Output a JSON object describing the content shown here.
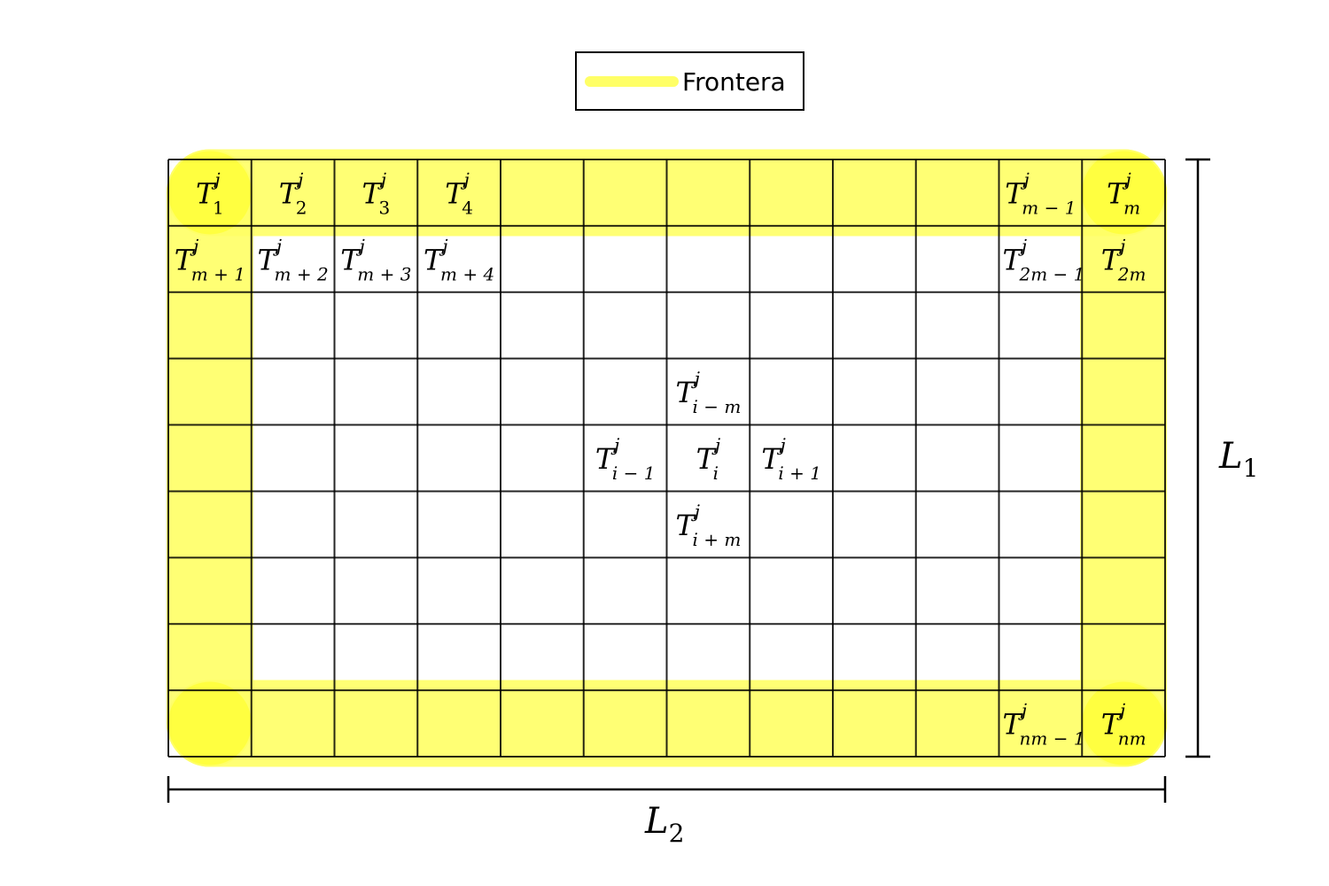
{
  "legend": {
    "label": "Frontera",
    "color": "#ffff66"
  },
  "grid": {
    "cols": 12,
    "rows": 9
  },
  "dimensions": {
    "height": {
      "base": "L",
      "sub": "1"
    },
    "width": {
      "base": "L",
      "sub": "2"
    }
  },
  "cell_labels": [
    {
      "row": 0,
      "col": 0,
      "sub": "1"
    },
    {
      "row": 0,
      "col": 1,
      "sub": "2"
    },
    {
      "row": 0,
      "col": 2,
      "sub": "3"
    },
    {
      "row": 0,
      "col": 3,
      "sub": "4"
    },
    {
      "row": 0,
      "col": 10,
      "sub": "m − 1"
    },
    {
      "row": 0,
      "col": 11,
      "sub": "m"
    },
    {
      "row": 1,
      "col": 0,
      "sub": "m + 1"
    },
    {
      "row": 1,
      "col": 1,
      "sub": "m + 2"
    },
    {
      "row": 1,
      "col": 2,
      "sub": "m + 3"
    },
    {
      "row": 1,
      "col": 3,
      "sub": "m + 4"
    },
    {
      "row": 1,
      "col": 10,
      "sub": "2m − 1"
    },
    {
      "row": 1,
      "col": 11,
      "sub": "2m"
    },
    {
      "row": 3,
      "col": 6,
      "sub": "i − m"
    },
    {
      "row": 4,
      "col": 5,
      "sub": "i − 1"
    },
    {
      "row": 4,
      "col": 6,
      "sub": "i"
    },
    {
      "row": 4,
      "col": 7,
      "sub": "i + 1"
    },
    {
      "row": 5,
      "col": 6,
      "sub": "i + m"
    },
    {
      "row": 8,
      "col": 10,
      "sub": "nm − 1"
    },
    {
      "row": 8,
      "col": 11,
      "sub": "nm"
    }
  ],
  "label_base": "T",
  "label_sup": "j"
}
